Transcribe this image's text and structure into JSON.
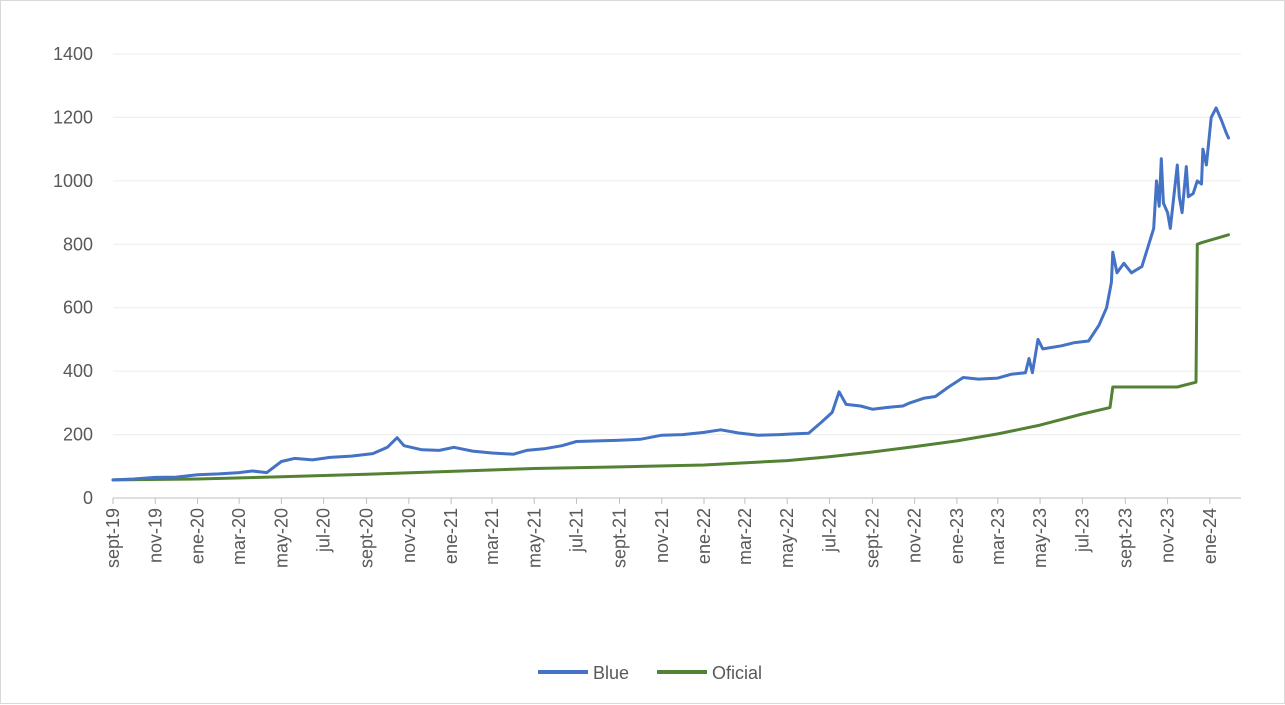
{
  "chart_data": {
    "type": "line",
    "title": "",
    "xlabel": "",
    "ylabel": "",
    "ylim": [
      0,
      1400
    ],
    "yticks": [
      0,
      200,
      400,
      600,
      800,
      1000,
      1200,
      1400
    ],
    "x_tick_labels": [
      "sept-19",
      "nov-19",
      "ene-20",
      "mar-20",
      "may-20",
      "jul-20",
      "sept-20",
      "nov-20",
      "ene-21",
      "mar-21",
      "may-21",
      "jul-21",
      "sept-21",
      "nov-21",
      "ene-22",
      "mar-22",
      "may-22",
      "jul-22",
      "sept-22",
      "nov-22",
      "ene-23",
      "mar-23",
      "may-23",
      "jul-23",
      "sept-23",
      "nov-23",
      "ene-24"
    ],
    "x_tick_dates": [
      "2019-09-01",
      "2019-11-01",
      "2020-01-01",
      "2020-03-01",
      "2020-05-01",
      "2020-07-01",
      "2020-09-01",
      "2020-11-01",
      "2021-01-01",
      "2021-03-01",
      "2021-05-01",
      "2021-07-01",
      "2021-09-01",
      "2021-11-01",
      "2022-01-01",
      "2022-03-01",
      "2022-05-01",
      "2022-07-01",
      "2022-09-01",
      "2022-11-01",
      "2023-01-01",
      "2023-03-01",
      "2023-05-01",
      "2023-07-01",
      "2023-09-01",
      "2023-11-01",
      "2024-01-01"
    ],
    "x_range": [
      "2019-09-01",
      "2024-02-15"
    ],
    "grid": "horizontal",
    "legend_position": "bottom",
    "series": [
      {
        "name": "Blue",
        "color": "#4472C4",
        "points": [
          [
            "2019-09-01",
            57
          ],
          [
            "2019-10-01",
            60
          ],
          [
            "2019-11-01",
            65
          ],
          [
            "2019-12-01",
            66
          ],
          [
            "2020-01-01",
            73
          ],
          [
            "2020-02-01",
            76
          ],
          [
            "2020-03-01",
            80
          ],
          [
            "2020-03-20",
            85
          ],
          [
            "2020-04-10",
            80
          ],
          [
            "2020-05-01",
            115
          ],
          [
            "2020-05-20",
            125
          ],
          [
            "2020-06-15",
            120
          ],
          [
            "2020-07-10",
            128
          ],
          [
            "2020-08-10",
            132
          ],
          [
            "2020-09-10",
            140
          ],
          [
            "2020-10-01",
            160
          ],
          [
            "2020-10-15",
            190
          ],
          [
            "2020-10-25",
            165
          ],
          [
            "2020-11-20",
            152
          ],
          [
            "2020-12-15",
            150
          ],
          [
            "2021-01-05",
            160
          ],
          [
            "2021-02-01",
            148
          ],
          [
            "2021-03-01",
            142
          ],
          [
            "2021-04-01",
            138
          ],
          [
            "2021-04-20",
            150
          ],
          [
            "2021-05-15",
            155
          ],
          [
            "2021-06-10",
            165
          ],
          [
            "2021-07-01",
            178
          ],
          [
            "2021-08-01",
            180
          ],
          [
            "2021-09-01",
            182
          ],
          [
            "2021-10-01",
            185
          ],
          [
            "2021-11-01",
            198
          ],
          [
            "2021-12-01",
            200
          ],
          [
            "2022-01-01",
            207
          ],
          [
            "2022-01-25",
            215
          ],
          [
            "2022-02-20",
            205
          ],
          [
            "2022-03-20",
            198
          ],
          [
            "2022-04-20",
            200
          ],
          [
            "2022-05-10",
            202
          ],
          [
            "2022-06-01",
            204
          ],
          [
            "2022-06-20",
            240
          ],
          [
            "2022-07-05",
            270
          ],
          [
            "2022-07-15",
            335
          ],
          [
            "2022-07-25",
            295
          ],
          [
            "2022-08-15",
            290
          ],
          [
            "2022-09-01",
            280
          ],
          [
            "2022-09-20",
            285
          ],
          [
            "2022-10-15",
            290
          ],
          [
            "2022-10-25",
            300
          ],
          [
            "2022-11-15",
            315
          ],
          [
            "2022-12-01",
            320
          ],
          [
            "2022-12-20",
            350
          ],
          [
            "2023-01-10",
            380
          ],
          [
            "2023-02-01",
            375
          ],
          [
            "2023-03-01",
            378
          ],
          [
            "2023-03-20",
            390
          ],
          [
            "2023-04-10",
            395
          ],
          [
            "2023-04-15",
            440
          ],
          [
            "2023-04-20",
            395
          ],
          [
            "2023-04-28",
            500
          ],
          [
            "2023-05-05",
            470
          ],
          [
            "2023-06-01",
            480
          ],
          [
            "2023-06-20",
            490
          ],
          [
            "2023-07-10",
            495
          ],
          [
            "2023-07-25",
            545
          ],
          [
            "2023-08-05",
            600
          ],
          [
            "2023-08-12",
            680
          ],
          [
            "2023-08-14",
            775
          ],
          [
            "2023-08-20",
            710
          ],
          [
            "2023-08-30",
            740
          ],
          [
            "2023-09-10",
            710
          ],
          [
            "2023-09-25",
            730
          ],
          [
            "2023-10-05",
            800
          ],
          [
            "2023-10-12",
            850
          ],
          [
            "2023-10-16",
            1000
          ],
          [
            "2023-10-20",
            920
          ],
          [
            "2023-10-23",
            1070
          ],
          [
            "2023-10-26",
            930
          ],
          [
            "2023-11-01",
            900
          ],
          [
            "2023-11-05",
            850
          ],
          [
            "2023-11-10",
            950
          ],
          [
            "2023-11-15",
            1050
          ],
          [
            "2023-11-18",
            950
          ],
          [
            "2023-11-22",
            900
          ],
          [
            "2023-11-28",
            1045
          ],
          [
            "2023-12-01",
            950
          ],
          [
            "2023-12-08",
            960
          ],
          [
            "2023-12-14",
            1000
          ],
          [
            "2023-12-20",
            990
          ],
          [
            "2023-12-22",
            1100
          ],
          [
            "2023-12-27",
            1050
          ],
          [
            "2024-01-03",
            1200
          ],
          [
            "2024-01-10",
            1230
          ],
          [
            "2024-01-18",
            1190
          ],
          [
            "2024-01-25",
            1150
          ],
          [
            "2024-01-28",
            1135
          ]
        ]
      },
      {
        "name": "Oficial",
        "color": "#548235",
        "points": [
          [
            "2019-09-01",
            57
          ],
          [
            "2020-01-01",
            60
          ],
          [
            "2020-05-01",
            67
          ],
          [
            "2020-09-01",
            75
          ],
          [
            "2021-01-01",
            84
          ],
          [
            "2021-05-01",
            93
          ],
          [
            "2021-09-01",
            98
          ],
          [
            "2022-01-01",
            104
          ],
          [
            "2022-05-01",
            118
          ],
          [
            "2022-07-01",
            130
          ],
          [
            "2022-09-01",
            145
          ],
          [
            "2022-11-01",
            162
          ],
          [
            "2023-01-01",
            180
          ],
          [
            "2023-03-01",
            202
          ],
          [
            "2023-05-01",
            230
          ],
          [
            "2023-07-01",
            265
          ],
          [
            "2023-08-10",
            285
          ],
          [
            "2023-08-14",
            350
          ],
          [
            "2023-11-15",
            350
          ],
          [
            "2023-12-12",
            365
          ],
          [
            "2023-12-14",
            800
          ],
          [
            "2023-12-20",
            805
          ],
          [
            "2024-01-28",
            830
          ]
        ]
      }
    ]
  }
}
